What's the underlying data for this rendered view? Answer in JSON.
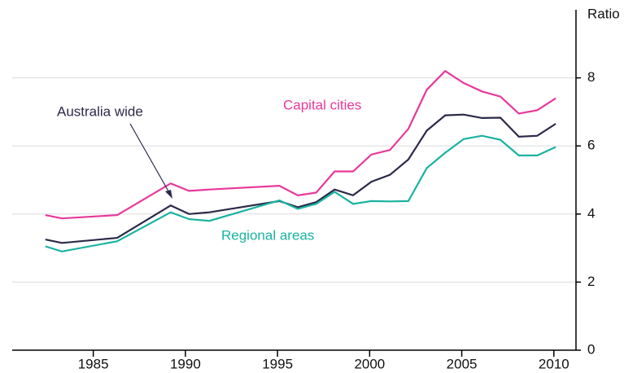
{
  "chart_data": {
    "type": "line",
    "y_axis_label": "Ratio",
    "x": [
      1982.4,
      1983.3,
      1986.3,
      1989.2,
      1990.2,
      1991.3,
      1995.1,
      1996.1,
      1997.1,
      1998.1,
      1999.1,
      2000.1,
      2001.1,
      2002.1,
      2003.1,
      2004.1,
      2005.1,
      2006.1,
      2007.1,
      2008.1,
      2009.1,
      2010.1
    ],
    "series": [
      {
        "name": "Capital cities",
        "color": "#e8389a",
        "values": [
          3.97,
          3.87,
          3.97,
          4.9,
          4.68,
          4.72,
          4.83,
          4.55,
          4.63,
          5.25,
          5.25,
          5.75,
          5.88,
          6.5,
          7.65,
          8.2,
          7.85,
          7.6,
          7.45,
          6.95,
          7.05,
          7.4
        ]
      },
      {
        "name": "Australia wide",
        "color": "#2b2a4a",
        "values": [
          3.25,
          3.15,
          3.3,
          4.25,
          4.0,
          4.05,
          4.38,
          4.2,
          4.35,
          4.72,
          4.55,
          4.95,
          5.15,
          5.6,
          6.45,
          6.9,
          6.92,
          6.82,
          6.83,
          6.27,
          6.3,
          6.65
        ]
      },
      {
        "name": "Regional areas",
        "color": "#1ab3a0",
        "values": [
          3.05,
          2.9,
          3.2,
          4.05,
          3.85,
          3.8,
          4.4,
          4.15,
          4.3,
          4.65,
          4.3,
          4.38,
          4.37,
          4.38,
          5.35,
          5.8,
          6.2,
          6.3,
          6.18,
          5.72,
          5.72,
          5.97
        ]
      }
    ],
    "xlim": [
      1980.6,
      2011.2
    ],
    "xticks": [
      1985,
      1990,
      1995,
      2000,
      2005,
      2010
    ],
    "ylim": [
      0,
      10
    ],
    "yticks": [
      0,
      2,
      4,
      6,
      8
    ],
    "grid": true
  }
}
